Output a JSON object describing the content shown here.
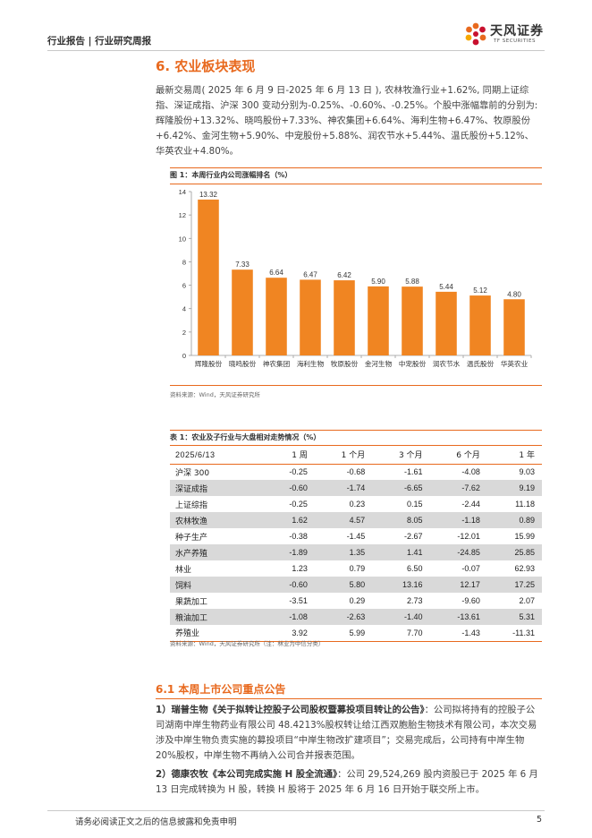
{
  "header": {
    "text": "行业报告 | 行业研究周报",
    "logo_cn": "天风证券",
    "logo_en": "TF SECURITIES"
  },
  "section": {
    "title": "6. 农业板块表现",
    "paragraph": "最新交易周( 2025 年 6 月 9 日-2025 年 6 月 13 日 ), 农林牧渔行业+1.62%, 同期上证综指、深证成指、沪深 300 变动分别为-0.25%、-0.60%、-0.25%。个股中涨幅靠前的分别为: 辉隆股份+13.32%、晓鸣股份+7.33%、神农集团+6.64%、海利生物+6.47%、牧原股份+6.42%、金河生物+5.90%、中宠股份+5.88%、润农节水+5.44%、温氏股份+5.12%、华英农业+4.80%。"
  },
  "figure": {
    "caption": "图 1：本周行业内公司涨幅排名（%）",
    "source": "资料来源：Wind，天风证券研究所"
  },
  "chart_data": {
    "type": "bar",
    "categories": [
      "辉隆股份",
      "晓鸣股份",
      "神农集团",
      "海利生物",
      "牧原股份",
      "金河生物",
      "中宠股份",
      "润农节水",
      "温氏股份",
      "华英农业"
    ],
    "values": [
      13.32,
      7.33,
      6.64,
      6.47,
      6.42,
      5.9,
      5.88,
      5.44,
      5.12,
      4.8
    ],
    "value_labels": [
      "13.32",
      "7.33",
      "6.64",
      "6.47",
      "6.42",
      "5.90",
      "5.88",
      "5.44",
      "5.12",
      "4.80"
    ],
    "ylim": [
      0,
      14
    ],
    "yticks": [
      0,
      2,
      4,
      6,
      8,
      10,
      12,
      14
    ],
    "grid": false,
    "bar_color": "#F08522",
    "title": "",
    "xlabel": "",
    "ylabel": ""
  },
  "table": {
    "caption": "表 1：农业及子行业与大盘相对走势情况（%）",
    "headers": [
      "2025/6/13",
      "1 周",
      "1 个月",
      "3 个月",
      "6 个月",
      "1 年"
    ],
    "rows": [
      [
        "沪深 300",
        "-0.25",
        "-0.68",
        "-1.61",
        "-4.08",
        "9.03"
      ],
      [
        "深证成指",
        "-0.60",
        "-1.74",
        "-6.65",
        "-7.62",
        "9.19"
      ],
      [
        "上证综指",
        "-0.25",
        "0.23",
        "0.15",
        "-2.44",
        "11.18"
      ],
      [
        "农林牧渔",
        "1.62",
        "4.57",
        "8.05",
        "-1.18",
        "0.89"
      ],
      [
        "种子生产",
        "-0.38",
        "-1.45",
        "-2.67",
        "-12.01",
        "15.99"
      ],
      [
        "水产养殖",
        "-1.89",
        "1.35",
        "1.41",
        "-24.85",
        "25.85"
      ],
      [
        "林业",
        "1.23",
        "0.79",
        "6.50",
        "-0.07",
        "62.93"
      ],
      [
        "饲料",
        "-0.60",
        "5.80",
        "13.16",
        "12.17",
        "17.25"
      ],
      [
        "果蔬加工",
        "-3.51",
        "0.29",
        "2.73",
        "-9.60",
        "2.07"
      ],
      [
        "粮油加工",
        "-1.08",
        "-2.63",
        "-1.40",
        "-13.61",
        "5.31"
      ],
      [
        "养殖业",
        "3.92",
        "5.99",
        "7.70",
        "-1.43",
        "-11.31"
      ]
    ],
    "source": "资料来源：Wind，天风证券研究所（注：林业为中信分类）"
  },
  "announcements": {
    "title": "6.1 本周上市公司重点公告",
    "items": [
      {
        "heading": "1）瑞普生物《关于拟转让控股子公司股权暨募投项目转让的公告》",
        "body": "：公司拟将持有的控股子公司湖南中岸生物药业有限公司 48.4213%股权转让给江西双胞胎生物技术有限公司，本次交易涉及中岸生物负责实施的募投项目“中岸生物改扩建项目”；交易完成后，公司持有中岸生物 20%股权，中岸生物不再纳入公司合并报表范围。"
      },
      {
        "heading": "2）德康农牧《本公司完成实施 H 股全流通》",
        "body": "：公司 29,524,269 股内资股已于 2025 年 6 月 13 日完成转换为 H 股，转换 H 股将于 2025 年 6 月 16 日开始于联交所上市。"
      }
    ]
  },
  "footer": {
    "disclaimer": "请务必阅读正文之后的信息披露和免责申明",
    "page": "5"
  }
}
